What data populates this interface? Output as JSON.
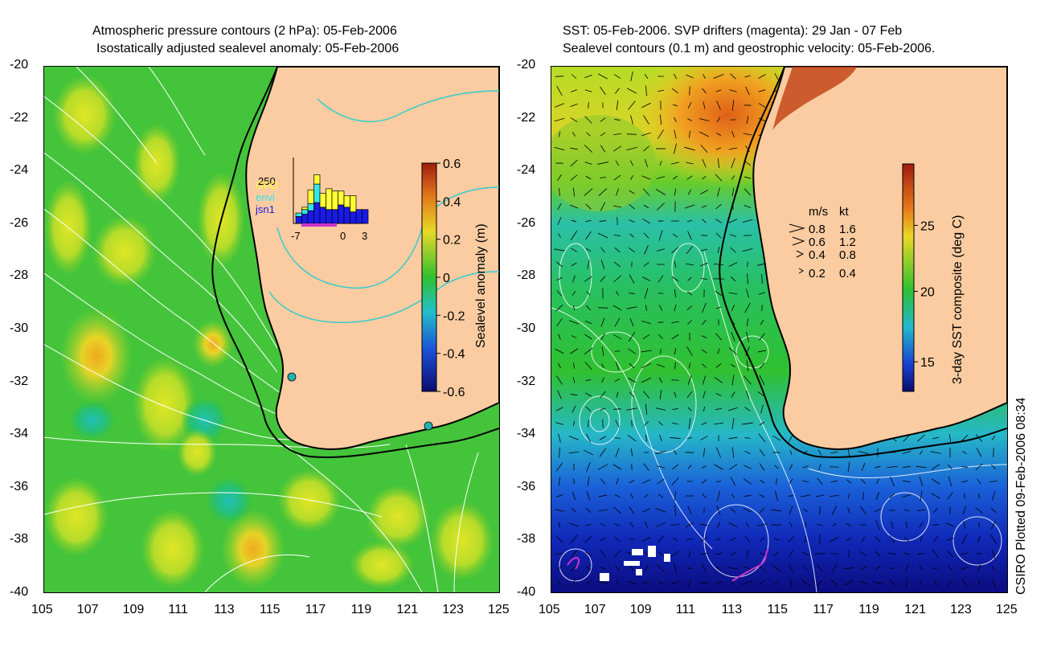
{
  "left_panel": {
    "title_line1": "Atmospheric pressure contours (2 hPa): 05-Feb-2006",
    "title_line2": "Isostatically adjusted sealevel anomaly: 05-Feb-2006",
    "colorbar": {
      "label": "Sealevel anomaly (m)",
      "ticks": [
        "0.6",
        "0.4",
        "0.2",
        "0",
        "-0.2",
        "-0.4",
        "-0.6"
      ]
    },
    "inset": {
      "ymax_label": "250",
      "legend": [
        {
          "name": "GFO",
          "color": "#ffff33"
        },
        {
          "name": "envi",
          "color": "#33e6e6"
        },
        {
          "name": "jsn1",
          "color": "#1a1ae6"
        }
      ],
      "xticks": [
        "-7",
        "0",
        "3"
      ],
      "bars": [
        {
          "jsn1": 30,
          "envi": 15,
          "gfo": 0
        },
        {
          "jsn1": 40,
          "envi": 20,
          "gfo": 10
        },
        {
          "jsn1": 55,
          "envi": 30,
          "gfo": 60
        },
        {
          "jsn1": 90,
          "envi": 80,
          "gfo": 40
        },
        {
          "jsn1": 70,
          "envi": 0,
          "gfo": 60
        },
        {
          "jsn1": 60,
          "envi": 0,
          "gfo": 90
        },
        {
          "jsn1": 60,
          "envi": 0,
          "gfo": 80
        },
        {
          "jsn1": 80,
          "envi": 0,
          "gfo": 60
        },
        {
          "jsn1": 70,
          "envi": 0,
          "gfo": 50
        },
        {
          "jsn1": 50,
          "envi": 0,
          "gfo": 70
        },
        {
          "jsn1": 60,
          "envi": 0,
          "gfo": 0
        },
        {
          "jsn1": 60,
          "envi": 0,
          "gfo": 0
        }
      ]
    }
  },
  "right_panel": {
    "title_line1": "SST: 05-Feb-2006. SVP drifters (magenta): 29 Jan - 07 Feb",
    "title_line2": "Sealevel contours (0.1 m) and geostrophic velocity: 05-Feb-2006.",
    "colorbar": {
      "label": "3-day SST composite (deg C)",
      "ticks": [
        "25",
        "20",
        "15"
      ]
    },
    "velocity_legend": {
      "header_ms": "m/s",
      "header_kt": "kt",
      "rows": [
        {
          "ms": "0.8",
          "kt": "1.6"
        },
        {
          "ms": "0.6",
          "kt": "1.2"
        },
        {
          "ms": "0.4",
          "kt": "0.8"
        },
        {
          "ms": "0.2",
          "kt": "0.4"
        }
      ]
    }
  },
  "axes": {
    "lat_labels": [
      "-20",
      "-22",
      "-24",
      "-26",
      "-28",
      "-30",
      "-32",
      "-34",
      "-36",
      "-38",
      "-40"
    ],
    "lon_labels": [
      "105",
      "107",
      "109",
      "111",
      "113",
      "115",
      "117",
      "119",
      "121",
      "123",
      "125"
    ]
  },
  "credit": "CSIRO Plotted 09-Feb-2006 08:34",
  "colors": {
    "land": "#fbcca1",
    "coast": "#000000",
    "contour": "#ffffff",
    "pressure_contour_on_land": "#33cccc",
    "drifter": "#cc33cc"
  }
}
